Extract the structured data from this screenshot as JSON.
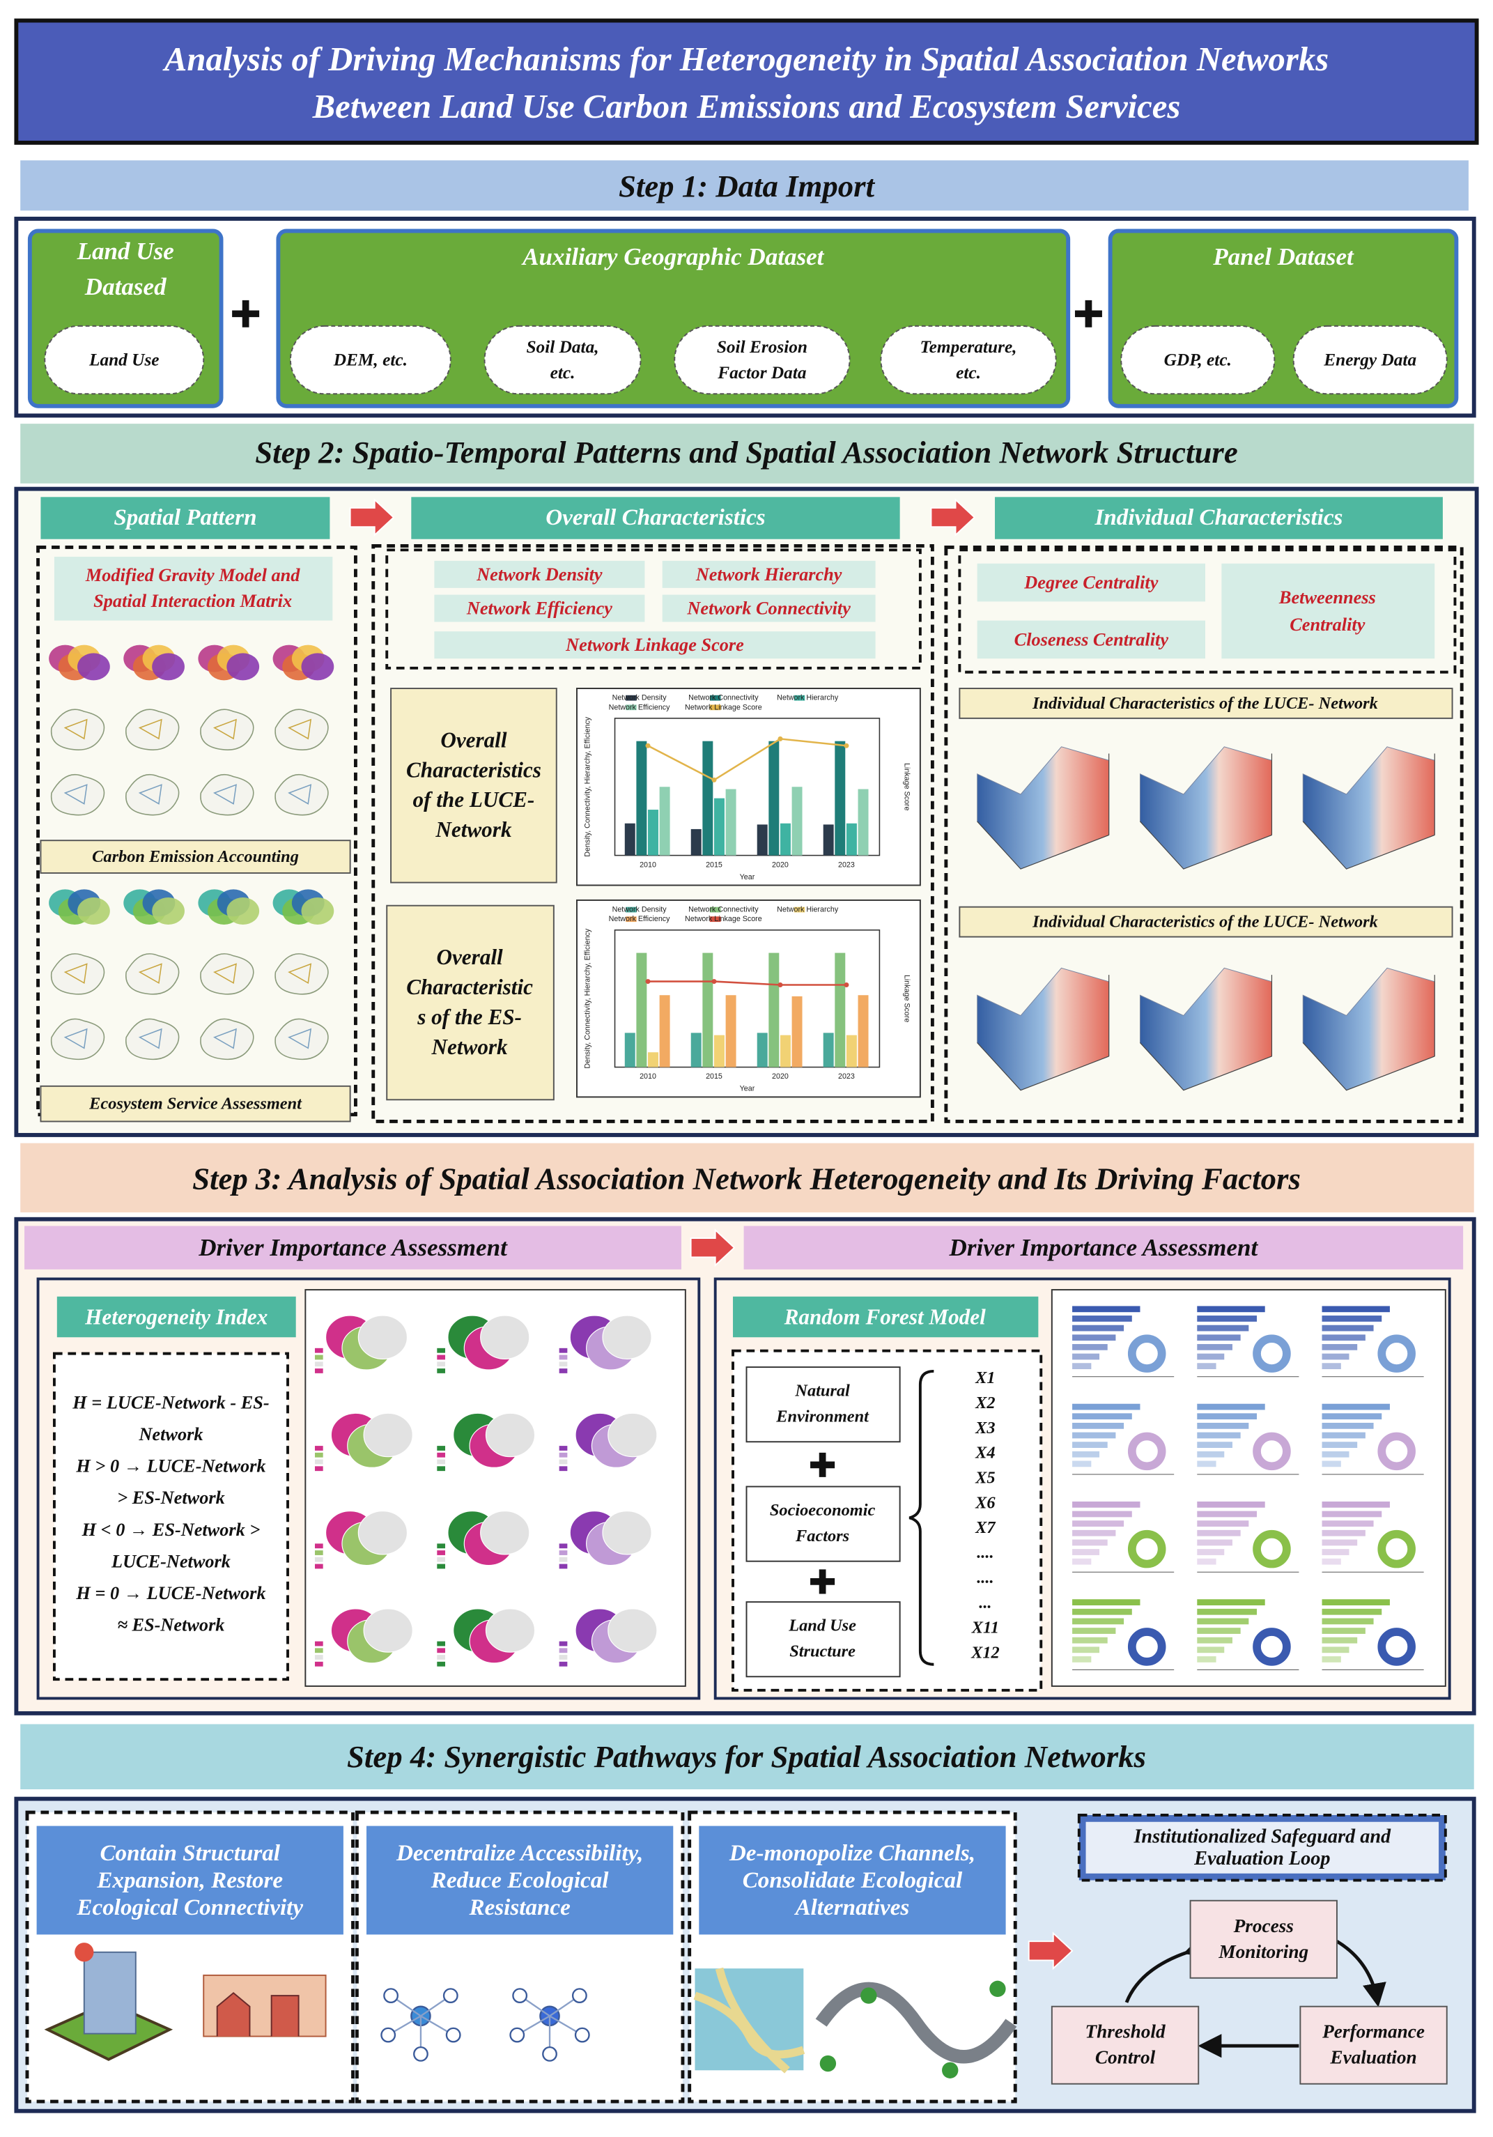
{
  "title": [
    "Analysis of Driving Mechanisms for Heterogeneity in Spatial Association Networks",
    "Between Land Use Carbon Emissions and Ecosystem Services"
  ],
  "step1": {
    "title": "Step 1: Data Import",
    "groups": [
      {
        "title": [
          "Land Use",
          "Datased"
        ],
        "items": [
          [
            "Land Use"
          ]
        ]
      },
      {
        "title": [
          "Auxiliary Geographic Dataset"
        ],
        "items": [
          [
            "DEM, etc."
          ],
          [
            "Soil Data,",
            "etc."
          ],
          [
            "Soil Erosion",
            "Factor Data"
          ],
          [
            "Temperature,",
            "etc."
          ]
        ]
      },
      {
        "title": [
          "Panel Dataset"
        ],
        "items": [
          [
            "GDP, etc."
          ],
          [
            "Energy Data"
          ]
        ]
      }
    ]
  },
  "step2": {
    "title": "Step 2: Spatio-Temporal Patterns and Spatial Association Network Structure",
    "headers": [
      "Spatial Pattern",
      "Overall  Characteristics",
      "Individual  Characteristics"
    ],
    "spatial": {
      "method": [
        "Modified Gravity Model and",
        "Spatial Interaction Matrix"
      ],
      "labels": [
        "Carbon Emission Accounting",
        "Ecosystem Service Assessment"
      ]
    },
    "overall": {
      "metrics": [
        "Network Density",
        "Network Hierarchy",
        "Network Efficiency",
        "Network Connectivity",
        "Network Linkage Score"
      ],
      "charts": [
        {
          "type": "bar",
          "label": [
            "Overall",
            "Characteristics",
            "of the LUCE-",
            "Network"
          ],
          "x": [
            "2010",
            "2015",
            "2020",
            "2023"
          ],
          "x_label": "Year",
          "y_label": "Density, Connectivity, Hierarchy, Efficiency",
          "y2_label": "Linkage Score",
          "ylim": [
            0,
            1.2
          ],
          "y2lim": [
            30,
            50
          ],
          "series": [
            {
              "name": "Network Density",
              "color": "#2c3b4c",
              "values": [
                0.28,
                0.23,
                0.27,
                0.27
              ]
            },
            {
              "name": "Network Connectivity",
              "color": "#1f7d78",
              "values": [
                1.0,
                1.0,
                1.0,
                1.0
              ]
            },
            {
              "name": "Network Hierarchy",
              "color": "#3fb3a2",
              "values": [
                0.4,
                0.5,
                0.28,
                0.28
              ]
            },
            {
              "name": "Network Efficiency",
              "color": "#8fd0b2",
              "values": [
                0.6,
                0.58,
                0.6,
                0.58
              ]
            },
            {
              "name": "Network Linkage Score",
              "color": "#e2b44a",
              "axis": "y2",
              "values": [
                46,
                41,
                47,
                46
              ]
            }
          ]
        },
        {
          "type": "bar",
          "label": [
            "Overall",
            "Characteristic",
            "s of the ES-",
            "Network"
          ],
          "x": [
            "2010",
            "2015",
            "2020",
            "2023"
          ],
          "x_label": "Year",
          "y_label": "Density, Connectivity, Hierarchy, Efficiency",
          "y2_label": "Linkage Score",
          "ylim": [
            0,
            1.2
          ],
          "y2lim": [
            30,
            70
          ],
          "series": [
            {
              "name": "Network Density",
              "color": "#4aa99b",
              "values": [
                0.3,
                0.3,
                0.3,
                0.3
              ]
            },
            {
              "name": "Network Connectivity",
              "color": "#86c27e",
              "values": [
                1.0,
                1.0,
                1.0,
                1.0
              ]
            },
            {
              "name": "Network Hierarchy",
              "color": "#f1d274",
              "values": [
                0.13,
                0.28,
                0.28,
                0.28
              ]
            },
            {
              "name": "Network Efficiency",
              "color": "#f2aa62",
              "values": [
                0.63,
                0.63,
                0.62,
                0.63
              ]
            },
            {
              "name": "Network Linkage Score",
              "color": "#d2503f",
              "axis": "y2",
              "values": [
                55,
                55,
                54,
                54
              ]
            }
          ]
        }
      ]
    },
    "individual": {
      "metrics": [
        "Degree Centrality",
        [
          "Betweenness",
          "Centrality"
        ],
        "Closeness Centrality"
      ],
      "charts": [
        "Individual   Characteristics of the LUCE- Network",
        "Individual   Characteristics of the LUCE- Network"
      ]
    }
  },
  "step3": {
    "title": "Step 3: Analysis of Spatial Association Network Heterogeneity and Its Driving Factors",
    "headers": [
      "Driver Importance Assessment",
      "Driver Importance Assessment"
    ],
    "heterogeneity": {
      "title": "Heterogeneity Index",
      "lines": [
        "H = LUCE-Network - ES-",
        "Network",
        "H > 0 → LUCE-Network",
        "> ES-Network",
        "H < 0 → ES-Network >",
        "LUCE-Network",
        "H = 0 → LUCE-Network",
        "≈ ES-Network"
      ]
    },
    "random_forest": {
      "title": "Random Forest Model",
      "groups": [
        [
          "Natural",
          "Environment"
        ],
        [
          "Socioeconomic",
          "Factors"
        ],
        [
          "Land Use",
          "Structure"
        ]
      ],
      "variables": [
        "X1",
        "X2",
        "X3",
        "X4",
        "X5",
        "X6",
        "X7",
        "....",
        "....",
        "...",
        "X11",
        "X12"
      ]
    }
  },
  "step4": {
    "title": "Step 4: Synergistic Pathways for Spatial Association Networks",
    "pathways": [
      [
        "Contain Structural",
        "Expansion, Restore",
        "Ecological Connectivity"
      ],
      [
        "Decentralize Accessibility,",
        "Reduce Ecological",
        "Resistance"
      ],
      [
        "De-monopolize Channels,",
        "Consolidate Ecological",
        "Alternatives"
      ]
    ],
    "loop": {
      "title": [
        "Institutionalized Safeguard and",
        "Evaluation Loop"
      ],
      "nodes": [
        [
          "Process",
          "Monitoring"
        ],
        [
          "Performance",
          "Evaluation"
        ],
        [
          "Threshold",
          "Control"
        ]
      ]
    }
  }
}
